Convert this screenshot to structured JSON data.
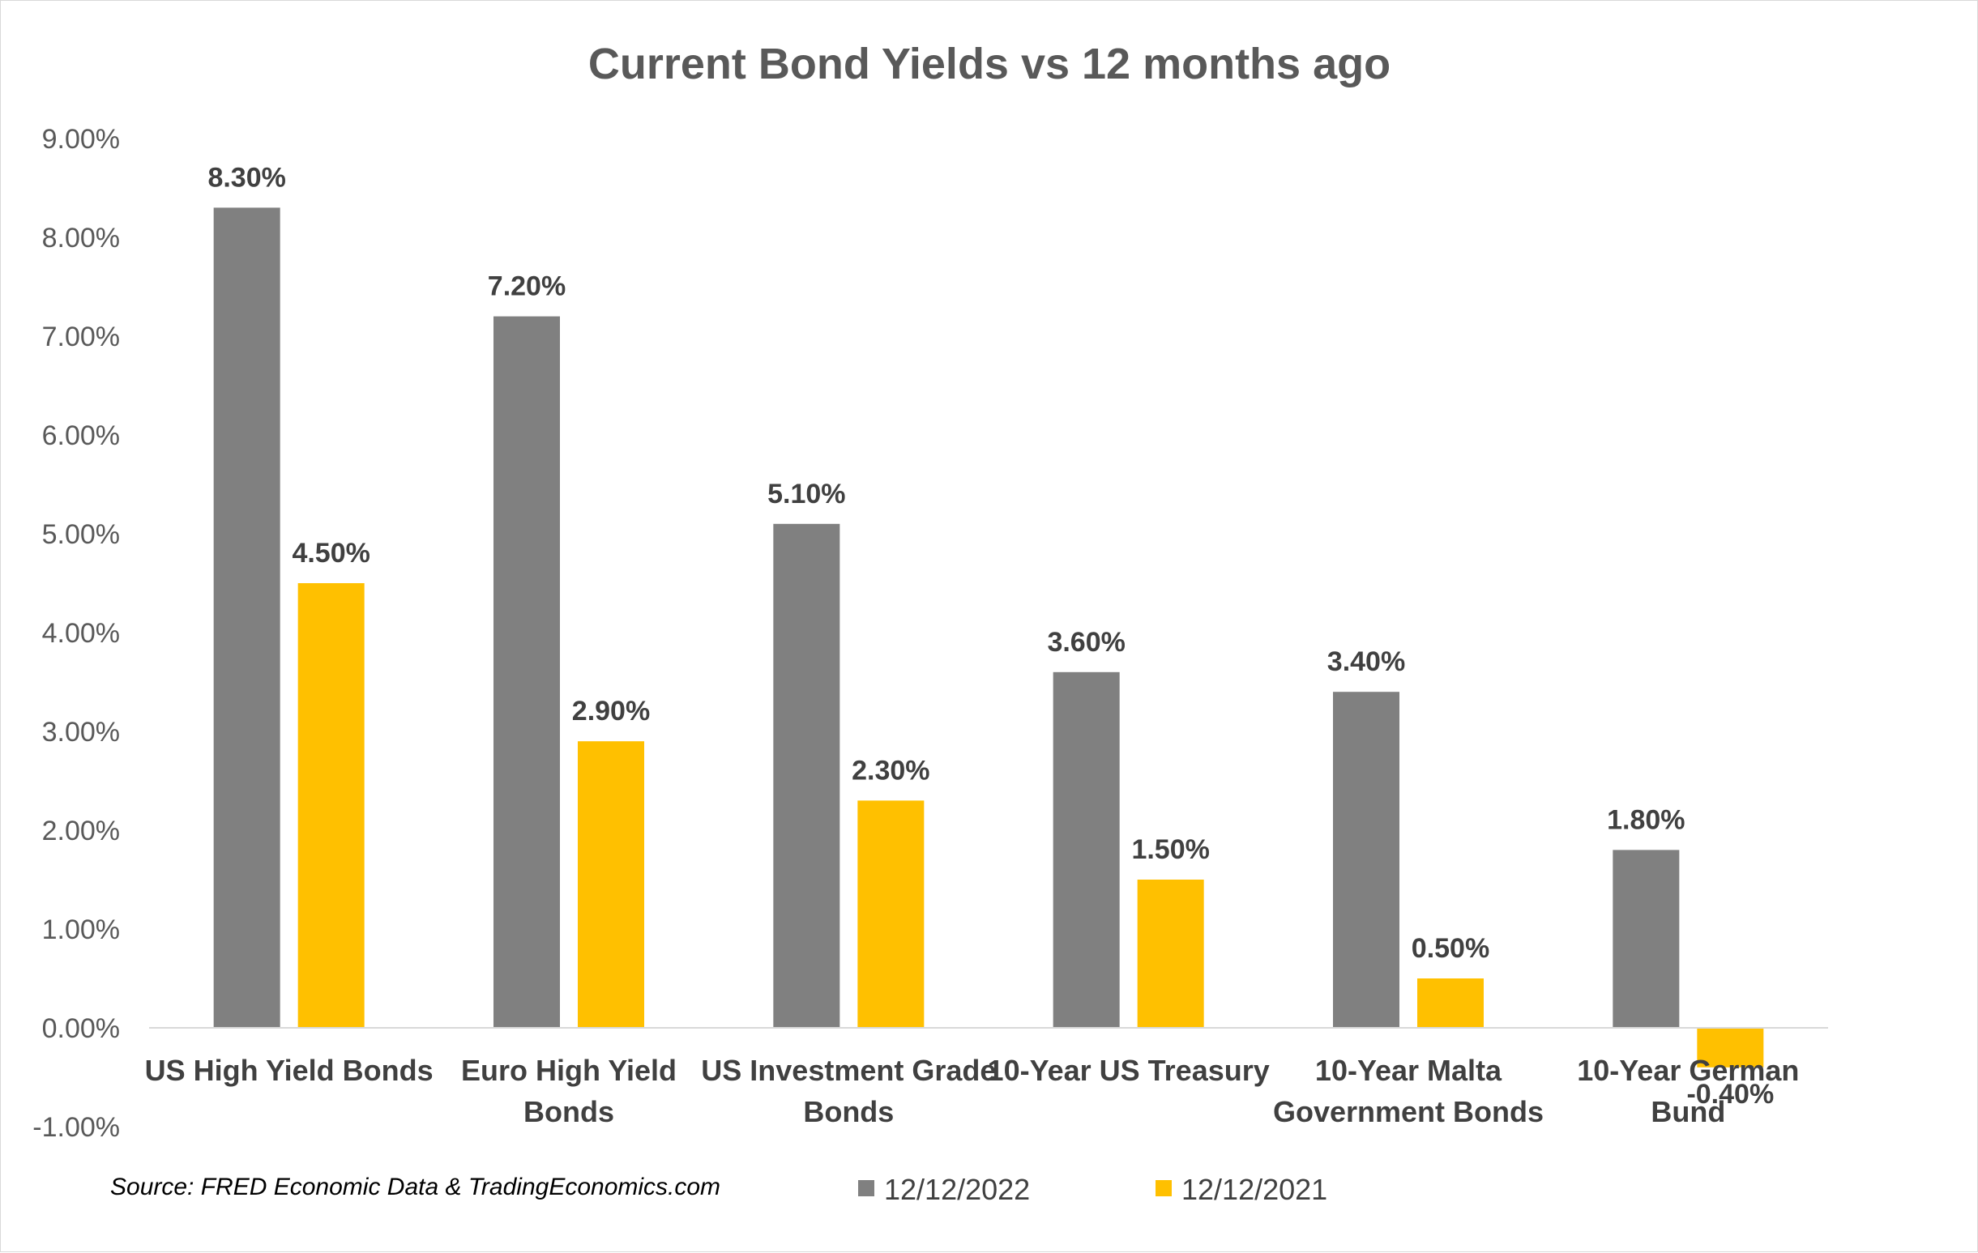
{
  "chart_data": {
    "type": "bar",
    "title": "Current Bond Yields vs 12 months ago",
    "categories": [
      [
        "US High Yield Bonds"
      ],
      [
        "Euro High Yield",
        "Bonds"
      ],
      [
        "US Investment Grade",
        "Bonds"
      ],
      [
        "10-Year US Treasury"
      ],
      [
        "10-Year Malta",
        "Government Bonds"
      ],
      [
        "10-Year German",
        "Bund"
      ]
    ],
    "series": [
      {
        "name": "12/12/2022",
        "color": "#808080",
        "values": [
          8.3,
          7.2,
          5.1,
          3.6,
          3.4,
          1.8
        ],
        "labels": [
          "8.30%",
          "7.20%",
          "5.10%",
          "3.60%",
          "3.40%",
          "1.80%"
        ]
      },
      {
        "name": "12/12/2021",
        "color": "#FFC000",
        "values": [
          4.5,
          2.9,
          2.3,
          1.5,
          0.5,
          -0.4
        ],
        "labels": [
          "4.50%",
          "2.90%",
          "2.30%",
          "1.50%",
          "0.50%",
          "-0.40%"
        ]
      }
    ],
    "ylim": [
      -1,
      9
    ],
    "yticks": [
      9,
      8,
      7,
      6,
      5,
      4,
      3,
      2,
      1,
      0,
      -1
    ],
    "ytick_labels": [
      "9.00%",
      "8.00%",
      "7.00%",
      "6.00%",
      "5.00%",
      "4.00%",
      "3.00%",
      "2.00%",
      "1.00%",
      "0.00%",
      "-1.00%"
    ],
    "grid": false,
    "legend_position": "bottom",
    "source": "Source: FRED Economic Data & TradingEconomics.com"
  }
}
